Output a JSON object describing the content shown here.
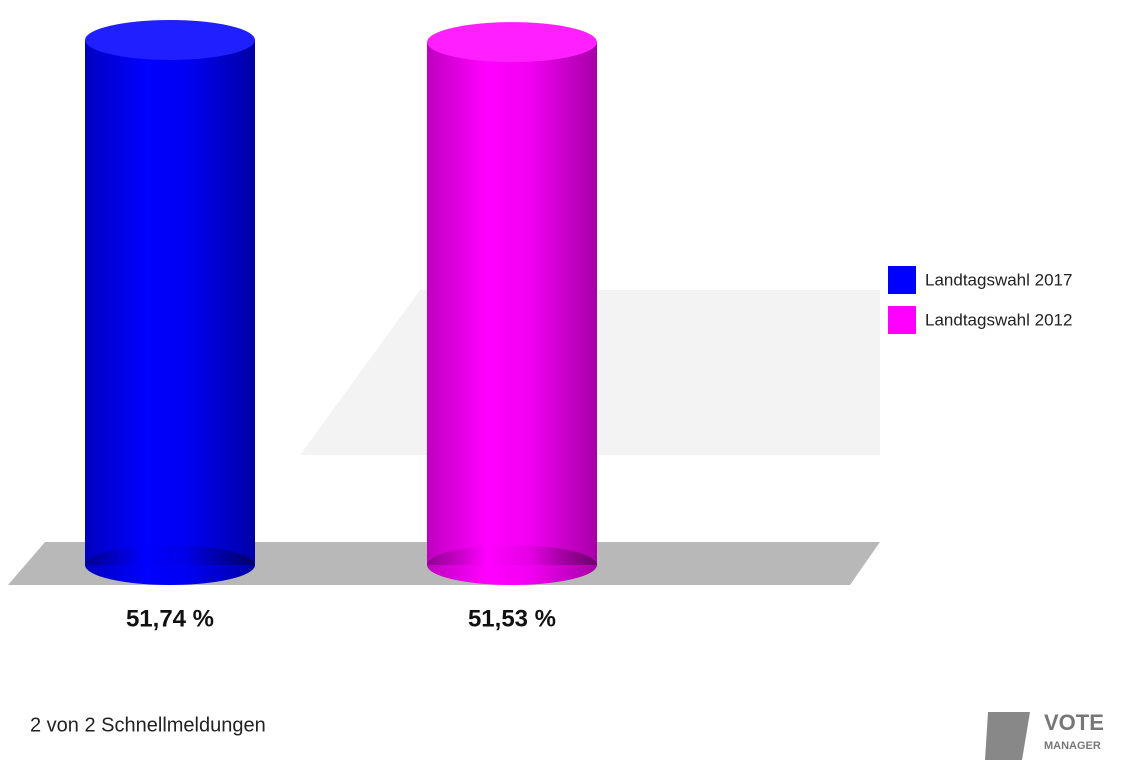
{
  "chart_data": {
    "type": "bar",
    "series": [
      {
        "name": "Landtagswahl 2017",
        "color": "#0000ff",
        "values": [
          51.74
        ],
        "value_labels": [
          "51,74 %"
        ]
      },
      {
        "name": "Landtagswahl 2012",
        "color": "#ff00ff",
        "values": [
          51.53
        ],
        "value_labels": [
          "51,53 %"
        ]
      }
    ],
    "legend": "right"
  },
  "footer": "2 von 2 Schnellmeldungen",
  "logo": [
    "VOTE",
    "MANAGER"
  ]
}
